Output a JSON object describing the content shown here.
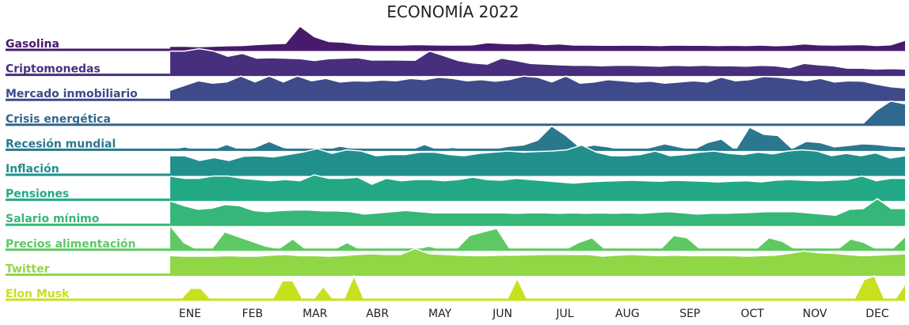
{
  "chart_data": {
    "type": "area",
    "title": "ECONOMÍA 2022",
    "x_labels": [
      "ENE",
      "FEB",
      "MAR",
      "ABR",
      "MAY",
      "JUN",
      "JUL",
      "AUG",
      "SEP",
      "OCT",
      "NOV",
      "DEC"
    ],
    "y_range_per_series": [
      0,
      100
    ],
    "grid": false,
    "legend": "none",
    "series": [
      {
        "name": "Gasolina",
        "color": "#481a6c",
        "values": [
          15,
          15,
          13,
          15,
          17,
          18,
          22,
          25,
          27,
          100,
          55,
          35,
          32,
          24,
          21,
          20,
          20,
          22,
          21,
          20,
          20,
          21,
          30,
          27,
          25,
          28,
          22,
          25,
          20,
          20,
          19,
          19,
          20,
          19,
          18,
          20,
          19,
          19,
          18,
          19,
          18,
          20,
          17,
          19,
          25,
          21,
          20,
          21,
          22,
          18,
          21,
          40
        ]
      },
      {
        "name": "Criptomonedas",
        "color": "#472f7d",
        "values": [
          100,
          100,
          110,
          100,
          78,
          90,
          70,
          72,
          70,
          68,
          60,
          68,
          70,
          72,
          62,
          63,
          62,
          61,
          100,
          80,
          60,
          50,
          45,
          70,
          60,
          48,
          45,
          42,
          40,
          40,
          38,
          40,
          40,
          38,
          36,
          40,
          38,
          40,
          38,
          38,
          36,
          40,
          38,
          30,
          48,
          42,
          38,
          28,
          28,
          24,
          26,
          24
        ]
      },
      {
        "name": "Mercado inmobiliario",
        "color": "#3e4a89",
        "values": [
          40,
          60,
          80,
          70,
          75,
          100,
          75,
          100,
          75,
          100,
          80,
          90,
          75,
          80,
          78,
          83,
          80,
          90,
          85,
          95,
          90,
          80,
          85,
          78,
          85,
          100,
          95,
          75,
          100,
          70,
          75,
          85,
          80,
          75,
          78,
          70,
          75,
          80,
          75,
          95,
          80,
          85,
          98,
          95,
          88,
          80,
          90,
          75,
          80,
          78,
          65,
          55,
          50
        ]
      },
      {
        "name": "Crisis energética",
        "color": "#31688e",
        "values": [
          0,
          0,
          0,
          0,
          0,
          0,
          0,
          0,
          0,
          0,
          0,
          0,
          0,
          0,
          0,
          0,
          0,
          0,
          0,
          0,
          0,
          0,
          0,
          0,
          0,
          0,
          0,
          0,
          0,
          0,
          0,
          0,
          0,
          0,
          0,
          0,
          0,
          0,
          0,
          0,
          0,
          0,
          0,
          0,
          0,
          0,
          0,
          0,
          0,
          60,
          100,
          88
        ]
      },
      {
        "name": "Recesión mundial",
        "color": "#2a788e",
        "values": [
          0,
          12,
          0,
          0,
          22,
          0,
          10,
          35,
          10,
          0,
          0,
          0,
          15,
          5,
          0,
          0,
          0,
          0,
          22,
          0,
          10,
          0,
          5,
          5,
          15,
          20,
          40,
          100,
          60,
          10,
          20,
          12,
          0,
          0,
          10,
          25,
          12,
          0,
          30,
          45,
          0,
          95,
          65,
          60,
          5,
          35,
          30,
          12,
          18,
          25,
          22,
          15,
          12
        ]
      },
      {
        "name": "Inflación",
        "color": "#21908d",
        "values": [
          80,
          80,
          60,
          72,
          60,
          78,
          80,
          75,
          85,
          95,
          110,
          90,
          105,
          100,
          80,
          85,
          85,
          95,
          95,
          85,
          80,
          90,
          95,
          100,
          95,
          98,
          100,
          105,
          125,
          95,
          80,
          80,
          85,
          100,
          80,
          85,
          95,
          100,
          90,
          85,
          95,
          88,
          100,
          105,
          100,
          80,
          90,
          80,
          92,
          70,
          80
        ]
      },
      {
        "name": "Pensiones",
        "color": "#22a884",
        "values": [
          100,
          90,
          90,
          100,
          100,
          90,
          85,
          80,
          85,
          80,
          105,
          90,
          90,
          95,
          65,
          90,
          80,
          85,
          85,
          80,
          85,
          95,
          85,
          82,
          90,
          85,
          80,
          75,
          70,
          75,
          78,
          80,
          82,
          80,
          78,
          82,
          80,
          78,
          75,
          78,
          80,
          75,
          82,
          85,
          82,
          80,
          82,
          85,
          100,
          80,
          90,
          90
        ]
      },
      {
        "name": "Salario mínimo",
        "color": "#35b779",
        "values": [
          100,
          80,
          65,
          70,
          85,
          80,
          60,
          55,
          60,
          62,
          62,
          58,
          58,
          55,
          45,
          50,
          55,
          60,
          55,
          50,
          50,
          50,
          50,
          50,
          50,
          48,
          50,
          50,
          48,
          50,
          48,
          50,
          48,
          50,
          48,
          52,
          55,
          50,
          45,
          48,
          48,
          50,
          52,
          55,
          55,
          55,
          50,
          45,
          40,
          65,
          68,
          110,
          68,
          68
        ]
      },
      {
        "name": "Precios alimentación",
        "color": "#5ec962",
        "values": [
          100,
          30,
          0,
          0,
          75,
          55,
          35,
          15,
          5,
          45,
          0,
          0,
          0,
          30,
          0,
          0,
          0,
          0,
          0,
          15,
          0,
          0,
          60,
          75,
          90,
          0,
          0,
          0,
          0,
          0,
          30,
          50,
          0,
          0,
          0,
          0,
          0,
          60,
          50,
          0,
          0,
          0,
          0,
          0,
          50,
          35,
          0,
          0,
          0,
          0,
          45,
          30,
          0,
          0,
          55
        ]
      },
      {
        "name": "Twitter",
        "color": "#8fd744",
        "values": [
          80,
          78,
          78,
          78,
          80,
          78,
          78,
          82,
          85,
          80,
          80,
          78,
          80,
          85,
          88,
          85,
          85,
          110,
          88,
          85,
          82,
          80,
          80,
          82,
          82,
          84,
          85,
          85,
          85,
          85,
          78,
          82,
          85,
          82,
          80,
          82,
          80,
          80,
          80,
          80,
          78,
          80,
          82,
          90,
          100,
          92,
          90,
          85,
          80,
          82,
          85,
          88
        ]
      },
      {
        "name": "Elon Musk",
        "color": "#c8e020",
        "values": [
          0,
          0,
          48,
          48,
          0,
          0,
          0,
          0,
          0,
          0,
          0,
          80,
          80,
          0,
          0,
          55,
          0,
          0,
          100,
          0,
          0,
          0,
          0,
          0,
          0,
          0,
          0,
          0,
          0,
          0,
          0,
          0,
          0,
          0,
          90,
          0,
          0,
          0,
          0,
          0,
          0,
          0,
          0,
          0,
          0,
          0,
          0,
          0,
          0,
          0,
          0,
          0,
          0,
          0,
          0,
          0,
          0,
          0,
          0,
          0,
          0,
          0,
          0,
          0,
          0,
          0,
          0,
          0,
          85,
          100,
          0,
          0,
          65
        ]
      }
    ]
  }
}
